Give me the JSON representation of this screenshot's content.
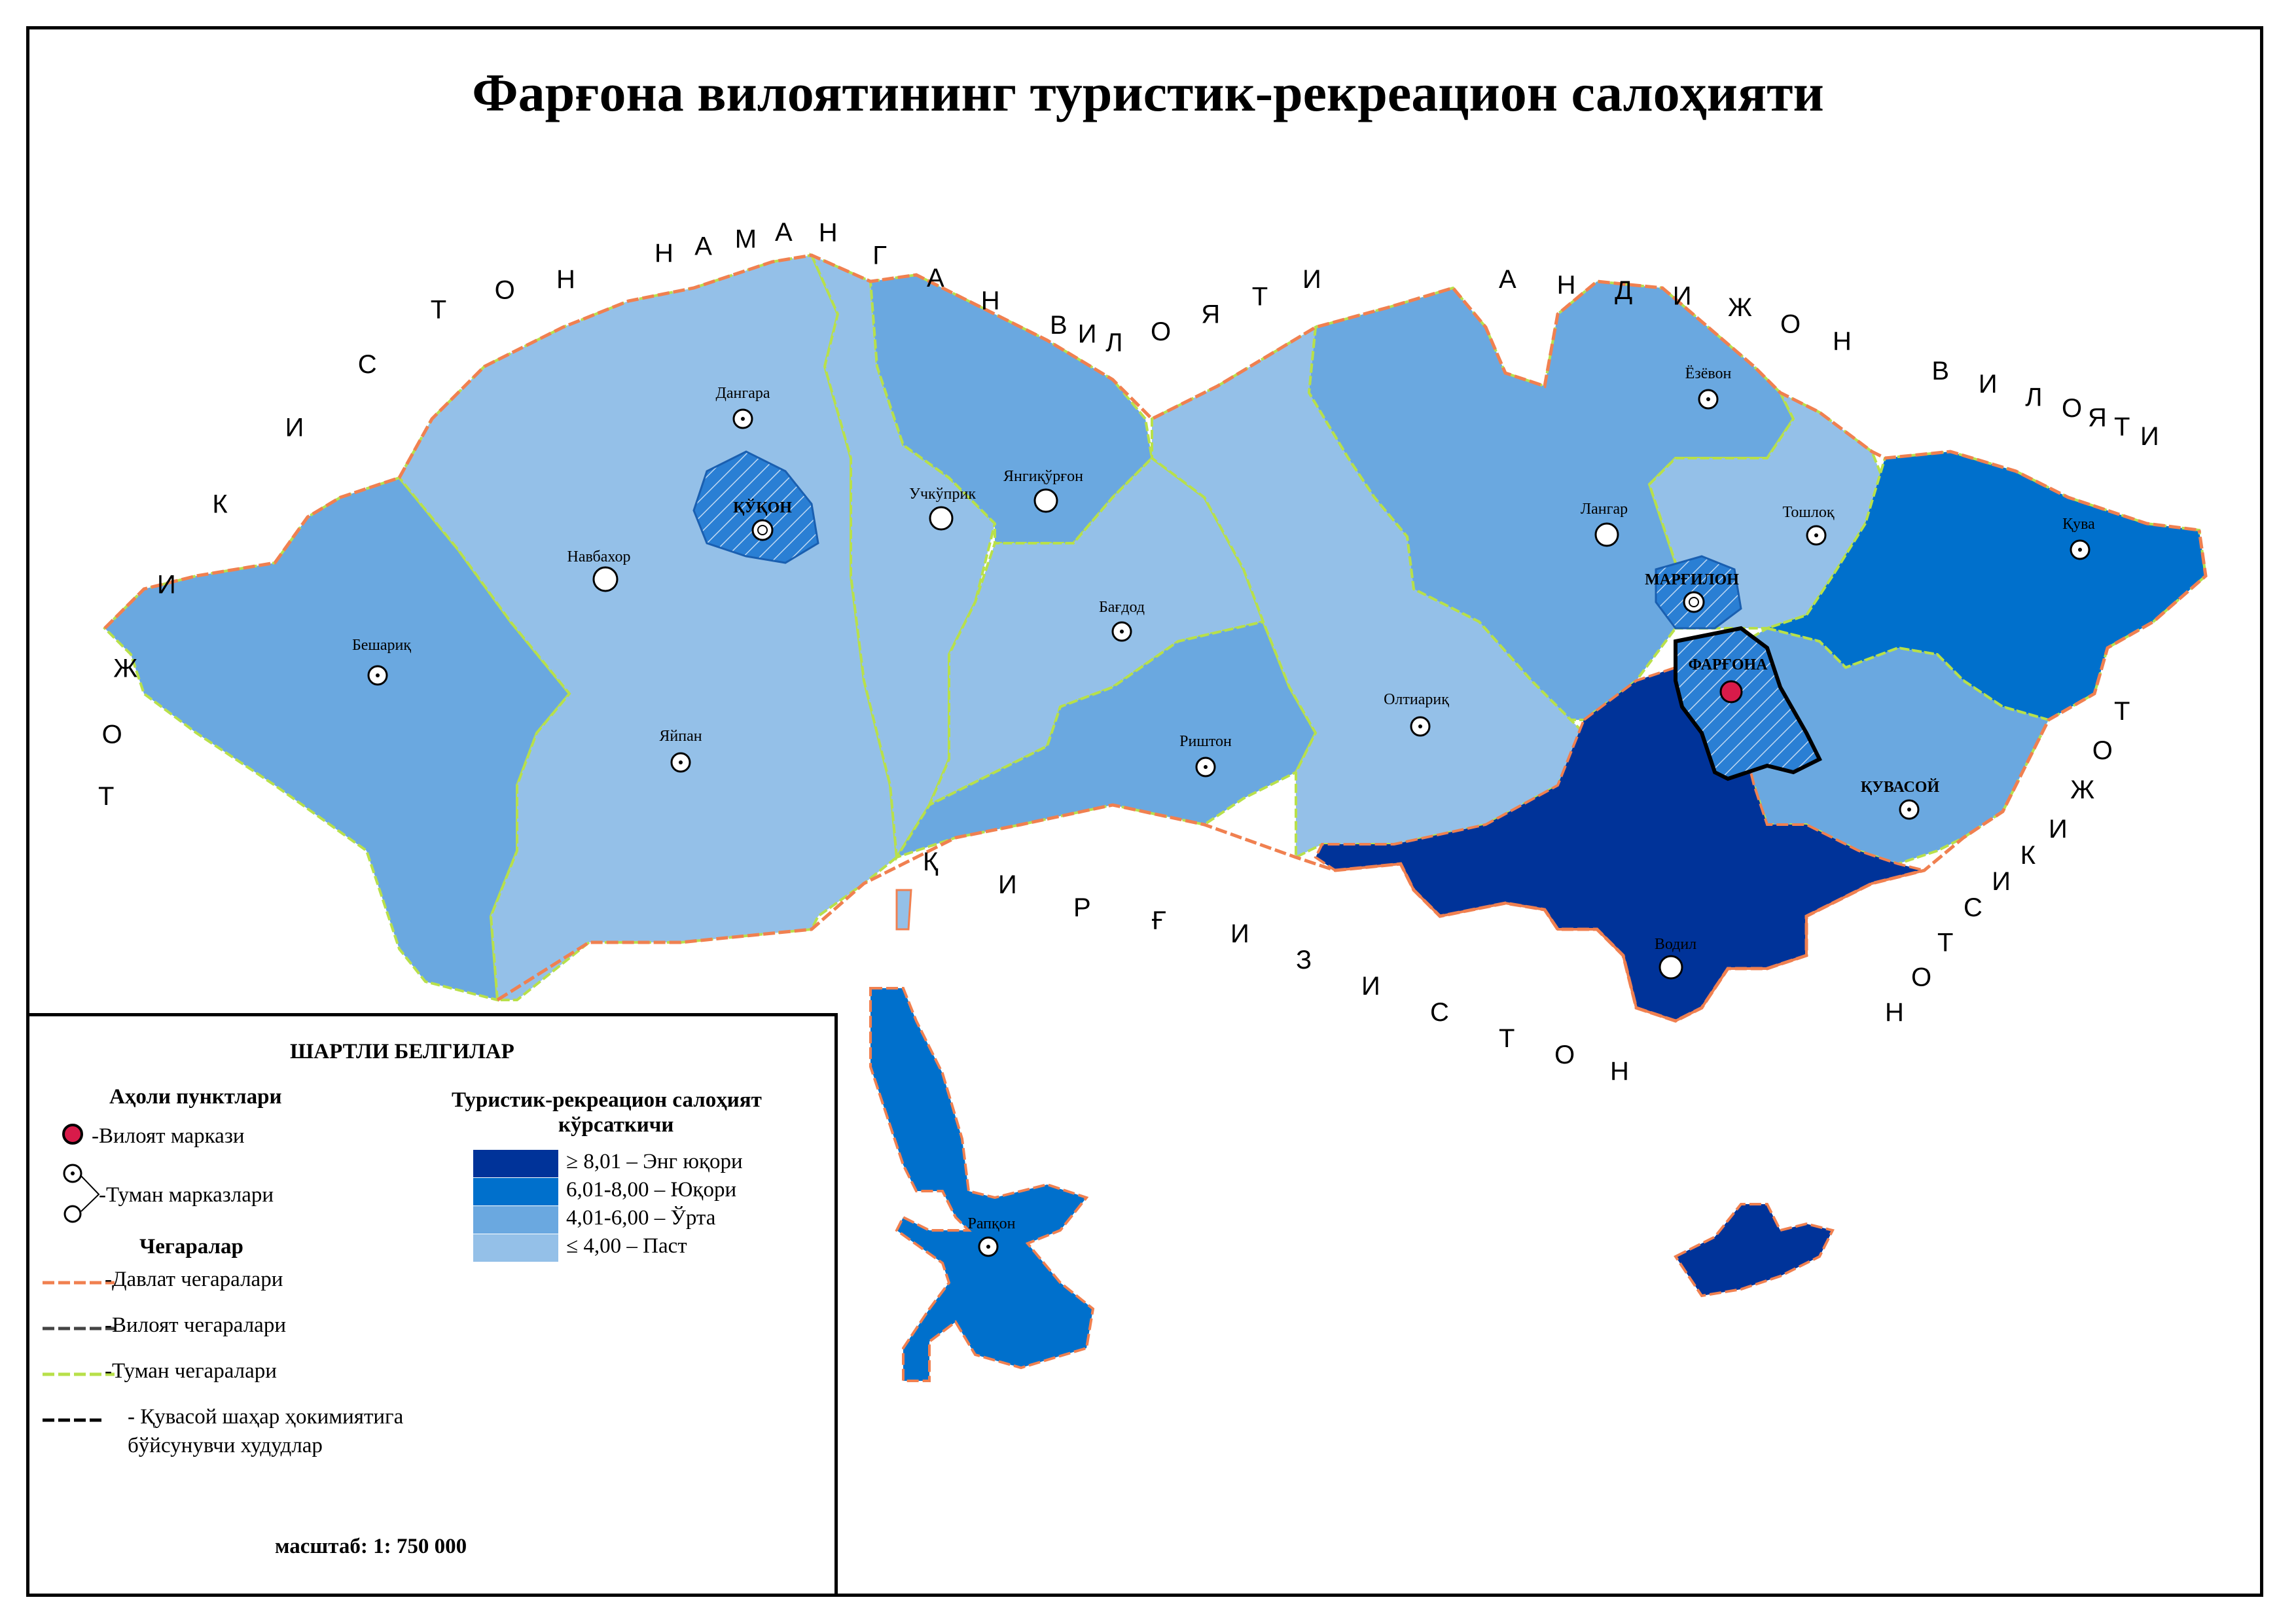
{
  "title": "Фарғона вилоятининг туристик-рекреацион салоҳияти",
  "neighbors": {
    "kyrgyzstan_west": "ҚИРҒИЗИСТОН",
    "tajikistan": "ТОЖИКИСТОН",
    "namangan": "НАМАНГАН ВИЛОЯТИ",
    "andijan": "АНДИЖОН ВИЛОЯТИ",
    "kyrgyzstan_south": "ҚИРҒИЗИСТОН"
  },
  "places": {
    "dangara": "Дангара",
    "kokand": "ҚЎҚОН",
    "navbahor": "Навбахор",
    "beshariq": "Бешариқ",
    "yaypan": "Яйпан",
    "uchkuprik": "Учкўприк",
    "yangikurgon": "Янгиқўрғон",
    "bagdod": "Бағдод",
    "rishton": "Риштон",
    "oltiariq": "Олтиариқ",
    "langar": "Лангар",
    "yozyovon": "Ёзёвон",
    "toshloq": "Тошлоқ",
    "margilon": "МАРҒИЛОН",
    "fargona": "ФАРҒОНА",
    "quva": "Қува",
    "quvasoy": "ҚУВАСОЙ",
    "vodil": "Водил",
    "rapqon": "Рапқон"
  },
  "legend": {
    "title": "ШАРТЛИ БЕЛГИЛАР",
    "settlements_heading": "Аҳоли пунктлари",
    "region_center": "-Вилоят маркази",
    "district_centers": "-Туман марказлари",
    "borders_heading": "Чегаралар",
    "state_border": "-Давлат чегаралари",
    "region_border": "-Вилоят чегаралари",
    "district_border": "-Туман чегаралари",
    "quvasoy_border_line1": "- Қувасой шаҳар ҳокимиятига",
    "quvasoy_border_line2": "бўйсунувчи худудлар",
    "index_heading_line1": "Туристик-рекреацион салоҳият",
    "index_heading_line2": "кўрсаткичи",
    "classes": [
      {
        "label": "≥ 8,01 – Энг юқори",
        "color": "#003399"
      },
      {
        "label": "6,01-8,00 – Юқори",
        "color": "#0070cc"
      },
      {
        "label": "4,01-6,00 – Ўрта",
        "color": "#6aa8e0"
      },
      {
        "label": "≤ 4,00 – Паст",
        "color": "#94c0e8"
      }
    ],
    "scale": "масштаб: 1: 750 000"
  },
  "colors": {
    "very_high": "#003399",
    "high": "#0070cc",
    "medium": "#6aa8e0",
    "low": "#94c0e8",
    "state_border": "#f08050",
    "district_border": "#b8e04a",
    "region_center": "#d81b4a"
  }
}
